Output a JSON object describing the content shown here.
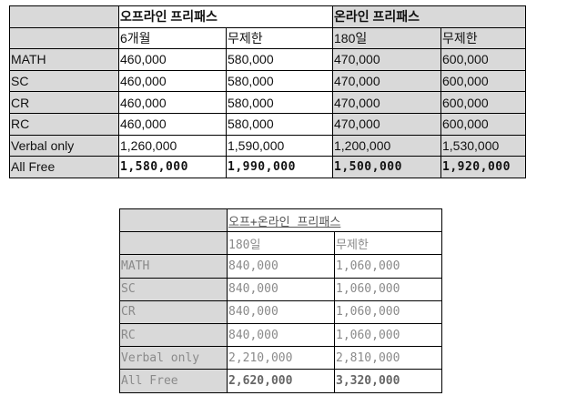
{
  "table_offline_online": {
    "group_headers": [
      "오프라인 프리패스",
      "온라인 프리패스"
    ],
    "sub_headers": [
      "6개월",
      "무제한",
      "180일",
      "무제한"
    ],
    "rows": [
      {
        "label": "MATH",
        "values": [
          "460,000",
          "580,000",
          "470,000",
          "600,000"
        ]
      },
      {
        "label": "SC",
        "values": [
          "460,000",
          "580,000",
          "470,000",
          "600,000"
        ]
      },
      {
        "label": "CR",
        "values": [
          "460,000",
          "580,000",
          "470,000",
          "600,000"
        ]
      },
      {
        "label": "RC",
        "values": [
          "460,000",
          "580,000",
          "470,000",
          "600,000"
        ]
      },
      {
        "label": "Verbal only",
        "values": [
          "1,260,000",
          "1,590,000",
          "1,200,000",
          "1,530,000"
        ]
      },
      {
        "label": "All Free",
        "values": [
          "1,580,000",
          "1,990,000",
          "1,500,000",
          "1,920,000"
        ]
      }
    ]
  },
  "table_combined": {
    "group_header": "오프+온라인 프리패스",
    "sub_headers": [
      "180일",
      "무제한"
    ],
    "rows": [
      {
        "label": "MATH",
        "values": [
          "840,000",
          "1,060,000"
        ]
      },
      {
        "label": "SC",
        "values": [
          "840,000",
          "1,060,000"
        ]
      },
      {
        "label": "CR",
        "values": [
          "840,000",
          "1,060,000"
        ]
      },
      {
        "label": "RC",
        "values": [
          "840,000",
          "1,060,000"
        ]
      },
      {
        "label": "Verbal only",
        "values": [
          "2,210,000",
          "2,810,000"
        ]
      },
      {
        "label": "All Free",
        "values": [
          "2,620,000",
          "3,320,000"
        ]
      }
    ]
  }
}
